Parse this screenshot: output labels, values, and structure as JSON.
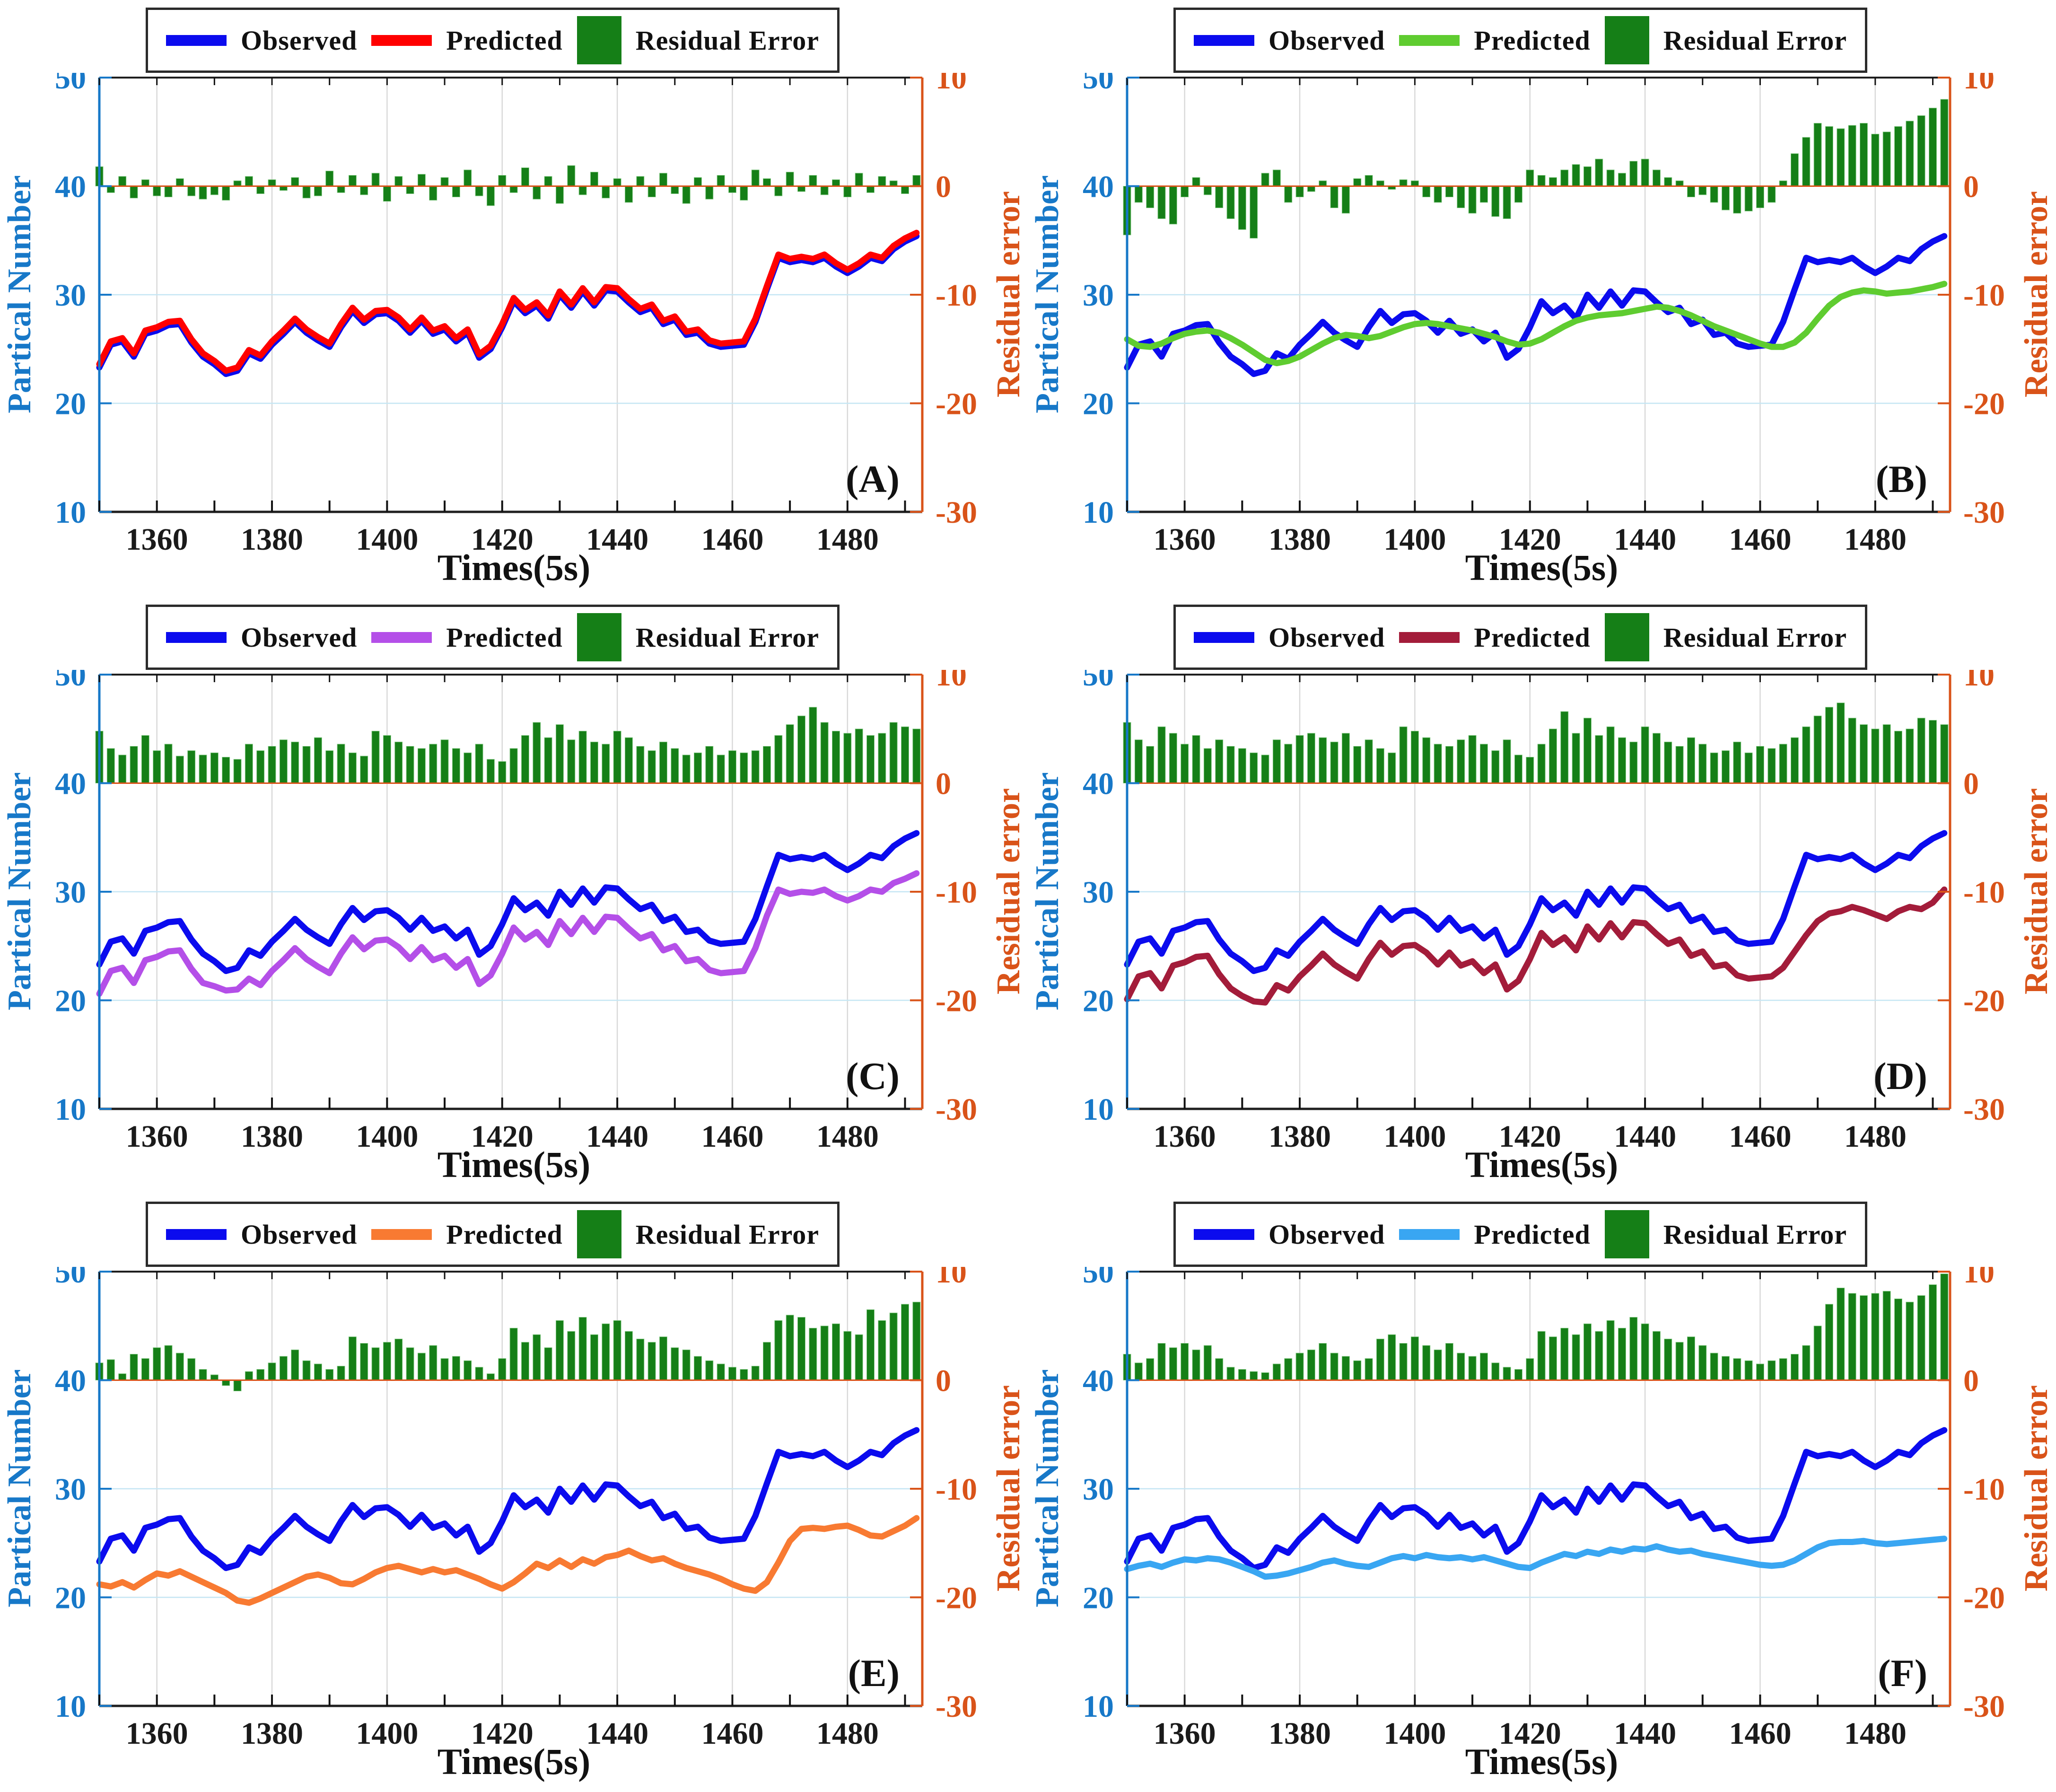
{
  "colors": {
    "observed": "#0b0bee",
    "residual_bar": "#157f17",
    "residual_bar_edge": "#8fcf8f",
    "axis_left": "#1778c8",
    "axis_right": "#d95319",
    "grid_vertical": "#d9d9d9",
    "grid_horizontal": "#c5e6f4",
    "tick_text": "#1a1a1a",
    "frame": "#1f1f1f"
  },
  "chart_data": {
    "type": "line+bar multi-panel (dual y-axis)",
    "x_label": "Times(5s)",
    "y_left_label": "Partical Number",
    "y_right_label": "Residual error",
    "legend": {
      "observed": "Observed",
      "predicted": "Predicted",
      "residual": "Residual Error"
    },
    "x_axis_range": [
      1350,
      1493
    ],
    "y_left_range": [
      10,
      50
    ],
    "y_right_range": [
      -30,
      10
    ],
    "x_ticks": [
      1360,
      1380,
      1400,
      1420,
      1440,
      1460,
      1480
    ],
    "x_minor_tick_step": 10,
    "y_left_ticks": [
      50,
      40,
      30,
      20,
      10
    ],
    "y_right_ticks": [
      10,
      0,
      -10,
      -20,
      -30
    ],
    "grid_y_left_values": [
      30,
      20
    ],
    "residual_zero_on_left_scale": 40,
    "x_start": 1350,
    "x_step": 2,
    "observed": [
      23.3,
      25.4,
      25.7,
      24.3,
      26.4,
      26.7,
      27.2,
      27.3,
      25.6,
      24.3,
      23.6,
      22.7,
      23.0,
      24.6,
      24.1,
      25.4,
      26.4,
      27.5,
      26.5,
      25.8,
      25.2,
      27.0,
      28.5,
      27.4,
      28.2,
      28.3,
      27.6,
      26.5,
      27.6,
      26.4,
      26.8,
      25.7,
      26.5,
      24.2,
      25.0,
      27.0,
      29.4,
      28.3,
      29.0,
      27.8,
      30.0,
      28.8,
      30.3,
      29.0,
      30.4,
      30.3,
      29.3,
      28.4,
      28.8,
      27.3,
      27.7,
      26.3,
      26.5,
      25.5,
      25.2,
      25.3,
      25.4,
      27.5,
      30.5,
      33.4,
      33.0,
      33.2,
      33.0,
      33.4,
      32.6,
      32.0,
      32.6,
      33.4,
      33.1,
      34.2,
      34.9,
      35.4
    ],
    "panels": [
      {
        "letter": "(A)",
        "predicted_color": "#ff0000",
        "predicted": [
          23.6,
          25.7,
          26.0,
          24.6,
          26.7,
          27.0,
          27.5,
          27.6,
          25.9,
          24.6,
          23.9,
          23.0,
          23.3,
          24.9,
          24.4,
          25.7,
          26.7,
          27.8,
          26.8,
          26.1,
          25.5,
          27.3,
          28.8,
          27.7,
          28.5,
          28.6,
          27.9,
          26.8,
          27.9,
          26.7,
          27.1,
          26.0,
          26.8,
          24.5,
          25.3,
          27.3,
          29.7,
          28.6,
          29.3,
          28.1,
          30.3,
          29.1,
          30.6,
          29.3,
          30.7,
          30.6,
          29.6,
          28.7,
          29.1,
          27.6,
          28.0,
          26.6,
          26.8,
          25.8,
          25.5,
          25.6,
          25.7,
          27.8,
          30.8,
          33.7,
          33.3,
          33.5,
          33.3,
          33.7,
          32.9,
          32.3,
          32.9,
          33.7,
          33.4,
          34.5,
          35.2,
          35.7
        ],
        "residual": [
          1.8,
          -0.6,
          0.9,
          -1.1,
          0.6,
          -0.9,
          -1.0,
          0.7,
          -0.9,
          -1.2,
          -0.8,
          -1.3,
          0.5,
          0.9,
          -0.7,
          0.6,
          -0.4,
          0.8,
          -1.1,
          -0.9,
          1.4,
          -0.6,
          1.0,
          -0.8,
          1.2,
          -1.4,
          0.9,
          -0.7,
          1.1,
          -1.3,
          0.8,
          -1.0,
          1.5,
          -0.9,
          -1.8,
          1.0,
          -0.6,
          1.7,
          -1.2,
          0.9,
          -1.6,
          1.9,
          -0.8,
          1.3,
          -1.1,
          0.7,
          -1.5,
          0.9,
          -1.0,
          1.2,
          -0.7,
          -1.6,
          0.8,
          -1.2,
          1.0,
          -0.6,
          -1.3,
          1.5,
          0.7,
          -0.9,
          1.3,
          -0.5,
          1.0,
          -0.8,
          0.6,
          -1.0,
          1.2,
          -0.6,
          0.9,
          0.5,
          -0.7,
          1.0
        ]
      },
      {
        "letter": "(B)",
        "predicted_color": "#5fcc30",
        "predicted": [
          25.9,
          25.3,
          25.2,
          25.5,
          26.0,
          26.4,
          26.6,
          26.7,
          26.5,
          26.0,
          25.4,
          24.7,
          24.0,
          23.7,
          23.9,
          24.3,
          24.9,
          25.5,
          26.0,
          26.3,
          26.2,
          26.0,
          26.2,
          26.6,
          27.0,
          27.3,
          27.4,
          27.3,
          27.1,
          26.9,
          26.7,
          26.4,
          26.1,
          25.7,
          25.4,
          25.5,
          25.9,
          26.5,
          27.1,
          27.6,
          27.9,
          28.1,
          28.2,
          28.3,
          28.5,
          28.7,
          28.9,
          28.8,
          28.5,
          28.1,
          27.6,
          27.1,
          26.7,
          26.3,
          25.9,
          25.5,
          25.2,
          25.2,
          25.6,
          26.5,
          27.8,
          29.0,
          29.8,
          30.2,
          30.4,
          30.3,
          30.1,
          30.2,
          30.3,
          30.5,
          30.7,
          31.0
        ],
        "residual": [
          -4.5,
          -1.5,
          -2.0,
          -3.0,
          -3.5,
          -1.0,
          0.8,
          -0.8,
          -2.0,
          -3.0,
          -4.0,
          -4.8,
          1.2,
          1.5,
          -1.5,
          -1.0,
          -0.5,
          0.5,
          -2.0,
          -2.5,
          0.7,
          1.0,
          0.5,
          -0.3,
          0.6,
          0.5,
          -1.0,
          -1.5,
          -1.0,
          -2.0,
          -2.5,
          -1.5,
          -2.8,
          -3.0,
          -1.5,
          1.5,
          1.0,
          0.8,
          1.5,
          2.0,
          1.8,
          2.5,
          1.5,
          1.2,
          2.3,
          2.5,
          1.5,
          0.8,
          0.5,
          -1.0,
          -0.8,
          -1.5,
          -2.2,
          -2.5,
          -2.3,
          -2.0,
          -1.5,
          0.5,
          3.0,
          4.5,
          5.8,
          5.5,
          5.3,
          5.6,
          5.8,
          4.8,
          5.0,
          5.5,
          6.0,
          6.5,
          7.2,
          8.0
        ]
      },
      {
        "letter": "(C)",
        "predicted_color": "#b44fe8",
        "predicted": [
          20.6,
          22.7,
          23.0,
          21.6,
          23.7,
          24.0,
          24.5,
          24.6,
          22.9,
          21.6,
          21.3,
          20.9,
          21.0,
          22.0,
          21.4,
          22.7,
          23.7,
          24.8,
          23.8,
          23.1,
          22.5,
          24.3,
          25.8,
          24.7,
          25.5,
          25.6,
          24.9,
          23.8,
          24.9,
          23.7,
          24.1,
          23.0,
          23.8,
          21.5,
          22.3,
          24.3,
          26.7,
          25.6,
          26.3,
          25.1,
          27.3,
          26.1,
          27.6,
          26.3,
          27.7,
          27.6,
          26.6,
          25.7,
          26.1,
          24.6,
          25.0,
          23.6,
          23.8,
          22.8,
          22.5,
          22.6,
          22.7,
          24.8,
          27.8,
          30.2,
          29.8,
          30.0,
          29.9,
          30.2,
          29.6,
          29.2,
          29.6,
          30.2,
          30.0,
          30.8,
          31.2,
          31.7
        ],
        "residual": [
          4.8,
          3.2,
          2.6,
          3.4,
          4.4,
          3.0,
          3.6,
          2.5,
          3.0,
          2.6,
          2.8,
          2.4,
          2.2,
          3.6,
          3.0,
          3.4,
          4.0,
          3.8,
          3.4,
          4.2,
          3.0,
          3.6,
          2.8,
          2.5,
          4.8,
          4.4,
          3.8,
          3.4,
          3.2,
          3.6,
          4.0,
          3.2,
          2.8,
          3.6,
          2.2,
          2.0,
          3.2,
          4.4,
          5.6,
          4.2,
          5.4,
          4.0,
          4.8,
          3.8,
          3.6,
          4.8,
          4.2,
          3.4,
          3.0,
          3.8,
          3.2,
          2.6,
          2.8,
          3.4,
          2.6,
          3.0,
          2.8,
          3.0,
          3.4,
          4.4,
          5.4,
          6.2,
          7.0,
          5.6,
          4.8,
          4.6,
          5.0,
          4.4,
          4.6,
          5.6,
          5.2,
          5.0
        ]
      },
      {
        "letter": "(D)",
        "predicted_color": "#a31c3a",
        "predicted": [
          20.1,
          22.2,
          22.5,
          21.1,
          23.2,
          23.5,
          24.0,
          24.1,
          22.4,
          21.1,
          20.4,
          19.9,
          19.8,
          21.4,
          20.9,
          22.2,
          23.2,
          24.3,
          23.3,
          22.6,
          22.0,
          23.8,
          25.3,
          24.2,
          25.0,
          25.1,
          24.4,
          23.3,
          24.4,
          23.2,
          23.6,
          22.5,
          23.3,
          21.0,
          21.8,
          23.8,
          26.2,
          25.1,
          25.8,
          24.6,
          26.8,
          25.6,
          27.1,
          25.8,
          27.2,
          27.1,
          26.1,
          25.2,
          25.6,
          24.1,
          24.5,
          23.1,
          23.3,
          22.3,
          22.0,
          22.1,
          22.2,
          23.0,
          24.5,
          26.0,
          27.3,
          28.0,
          28.2,
          28.6,
          28.3,
          27.9,
          27.5,
          28.2,
          28.6,
          28.4,
          29.0,
          30.2
        ],
        "residual": [
          5.6,
          4.0,
          3.4,
          5.2,
          4.6,
          3.6,
          4.4,
          3.2,
          4.0,
          3.4,
          3.2,
          2.8,
          2.6,
          4.0,
          3.6,
          4.4,
          4.6,
          4.2,
          3.8,
          4.6,
          3.4,
          4.0,
          3.2,
          2.8,
          5.2,
          4.8,
          4.2,
          3.6,
          3.4,
          4.0,
          4.4,
          3.6,
          3.0,
          4.0,
          2.6,
          2.4,
          3.6,
          5.0,
          6.6,
          4.6,
          6.0,
          4.4,
          5.2,
          4.2,
          3.8,
          5.2,
          4.6,
          3.8,
          3.4,
          4.2,
          3.6,
          2.8,
          3.0,
          3.8,
          2.8,
          3.4,
          3.2,
          3.6,
          4.2,
          5.2,
          6.2,
          7.0,
          7.4,
          6.0,
          5.4,
          5.0,
          5.4,
          4.8,
          5.0,
          6.0,
          5.8,
          5.4
        ]
      },
      {
        "letter": "(E)",
        "predicted_color": "#f87a32",
        "predicted": [
          21.2,
          21.0,
          21.4,
          20.9,
          21.6,
          22.2,
          22.0,
          22.4,
          21.9,
          21.4,
          20.9,
          20.4,
          19.7,
          19.5,
          19.9,
          20.4,
          20.9,
          21.4,
          21.9,
          22.1,
          21.8,
          21.3,
          21.2,
          21.7,
          22.3,
          22.7,
          22.9,
          22.6,
          22.3,
          22.6,
          22.3,
          22.5,
          22.1,
          21.7,
          21.2,
          20.8,
          21.4,
          22.2,
          23.1,
          22.7,
          23.4,
          22.8,
          23.5,
          23.1,
          23.7,
          23.9,
          24.3,
          23.8,
          23.4,
          23.6,
          23.1,
          22.7,
          22.4,
          22.1,
          21.7,
          21.2,
          20.8,
          20.6,
          21.4,
          23.2,
          25.2,
          26.3,
          26.4,
          26.3,
          26.5,
          26.6,
          26.2,
          25.7,
          25.6,
          26.1,
          26.6,
          27.3
        ],
        "residual": [
          1.6,
          1.9,
          0.6,
          2.4,
          2.0,
          3.0,
          3.2,
          2.5,
          2.0,
          1.0,
          0.5,
          -0.5,
          -1.0,
          0.8,
          1.0,
          1.6,
          2.2,
          2.8,
          1.8,
          1.5,
          1.0,
          1.3,
          4.0,
          3.4,
          3.0,
          3.5,
          3.8,
          3.0,
          2.5,
          3.2,
          2.0,
          2.2,
          1.8,
          1.2,
          0.6,
          2.0,
          4.8,
          3.5,
          4.2,
          3.0,
          5.5,
          4.5,
          5.8,
          4.2,
          5.2,
          5.5,
          4.5,
          3.8,
          3.5,
          4.0,
          3.0,
          2.8,
          2.2,
          1.8,
          1.5,
          1.2,
          1.0,
          1.3,
          3.5,
          5.5,
          6.0,
          5.8,
          4.8,
          5.0,
          5.2,
          4.5,
          4.2,
          6.5,
          5.5,
          6.2,
          7.0,
          7.2
        ]
      },
      {
        "letter": "(F)",
        "predicted_color": "#39a6f2",
        "predicted": [
          22.6,
          22.9,
          23.1,
          22.8,
          23.2,
          23.5,
          23.4,
          23.6,
          23.5,
          23.2,
          22.8,
          22.4,
          21.9,
          22.0,
          22.2,
          22.5,
          22.8,
          23.2,
          23.4,
          23.1,
          22.9,
          22.8,
          23.2,
          23.6,
          23.8,
          23.6,
          23.9,
          23.7,
          23.6,
          23.7,
          23.5,
          23.7,
          23.4,
          23.1,
          22.8,
          22.7,
          23.2,
          23.6,
          24.0,
          23.8,
          24.2,
          24.0,
          24.4,
          24.2,
          24.5,
          24.4,
          24.7,
          24.4,
          24.2,
          24.3,
          24.0,
          23.8,
          23.6,
          23.4,
          23.2,
          23.0,
          22.9,
          23.0,
          23.4,
          24.0,
          24.6,
          25.0,
          25.1,
          25.1,
          25.2,
          25.0,
          24.9,
          25.0,
          25.1,
          25.2,
          25.3,
          25.4
        ],
        "residual": [
          2.4,
          1.6,
          2.0,
          3.4,
          3.0,
          3.4,
          2.8,
          3.2,
          2.0,
          1.2,
          1.0,
          0.8,
          0.7,
          1.5,
          2.0,
          2.5,
          2.8,
          3.4,
          2.5,
          2.2,
          1.8,
          2.0,
          3.8,
          4.2,
          3.4,
          4.0,
          3.2,
          2.8,
          3.4,
          2.5,
          2.2,
          2.5,
          1.6,
          1.2,
          1.0,
          2.0,
          4.5,
          4.0,
          4.8,
          4.2,
          5.2,
          4.5,
          5.5,
          4.8,
          5.8,
          5.2,
          4.5,
          3.8,
          3.5,
          4.0,
          3.2,
          2.5,
          2.2,
          2.0,
          1.8,
          1.5,
          1.8,
          2.0,
          2.4,
          3.2,
          5.0,
          7.0,
          8.5,
          8.0,
          7.8,
          8.0,
          8.2,
          7.5,
          7.2,
          7.8,
          8.8,
          9.8
        ]
      }
    ]
  }
}
